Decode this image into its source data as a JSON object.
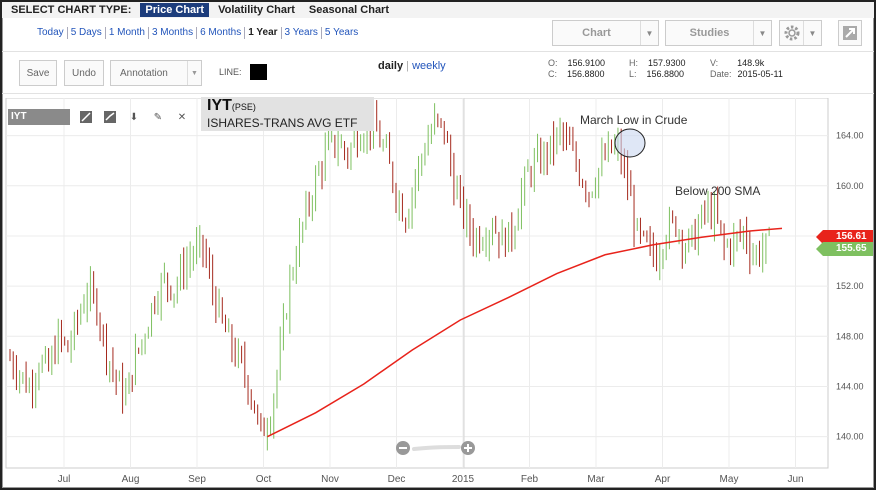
{
  "chart_type_bar": {
    "label": "SELECT CHART TYPE:",
    "options": [
      "Price Chart",
      "Volatility Chart",
      "Seasonal Chart"
    ],
    "selected": "Price Chart"
  },
  "ranges": [
    "Today",
    "5 Days",
    "1 Month",
    "3 Months",
    "6 Months",
    "1 Year",
    "3 Years",
    "5 Years"
  ],
  "selected_range": "1 Year",
  "toolbar": {
    "chart_btn": "Chart",
    "studies_btn": "Studies",
    "save_btn": "Save",
    "undo_btn": "Undo",
    "annotation_select": "Annotation",
    "line_label": "LINE:",
    "line_color": "#000000",
    "period_daily": "daily",
    "period_sep": "|",
    "period_weekly": "weekly",
    "gear_icon": "gear-icon",
    "popout_icon": "popout-icon"
  },
  "quote": {
    "open_label": "O:",
    "open": "156.9100",
    "close_label": "C:",
    "close": "156.8800",
    "high_label": "H:",
    "high": "157.9300",
    "low_label": "L:",
    "low": "156.8800",
    "vol_label": "V:",
    "vol": "148.9k",
    "date_label": "Date:",
    "date": "2015-05-11"
  },
  "symbol_box": "IYT",
  "ticker": {
    "symbol": "IYT",
    "exchange": "(PSE)",
    "name": "ISHARES-TRANS AVG ETF"
  },
  "annotations": {
    "march_low": "March Low in Crude",
    "below_sma": "Below 200 SMA"
  },
  "price_tags": {
    "sma_value": "156.61",
    "sma_color": "#e8231b",
    "last_value": "155.65",
    "last_color": "#7ec060"
  },
  "colors": {
    "up": "#7ec060",
    "down": "#a52a1e",
    "sma": "#e8231b",
    "accent": "#1d3d7c"
  },
  "chart_data": {
    "type": "ohlc",
    "x_tick_labels": [
      "Jul",
      "Aug",
      "Sep",
      "Oct",
      "Nov",
      "Dec",
      "2015",
      "Feb",
      "Mar",
      "Apr",
      "May",
      "Jun"
    ],
    "y_tick_labels": [
      "140.00",
      "144.00",
      "148.00",
      "152.00",
      "156.00",
      "160.00",
      "164.00"
    ],
    "y_ticks": [
      140,
      144,
      148,
      152,
      156,
      160,
      164
    ],
    "ylim": [
      137.5,
      167
    ],
    "grid": true,
    "series": [
      {
        "name": "IYT",
        "type": "ohlc-bars",
        "points": [
          [
            0,
            146.2
          ],
          [
            6,
            145.1
          ],
          [
            12,
            143.9
          ],
          [
            18,
            146.0
          ],
          [
            24,
            145.3
          ],
          [
            30,
            147.9
          ],
          [
            36,
            146.9
          ],
          [
            42,
            149.3
          ],
          [
            48,
            151.7
          ],
          [
            54,
            150.4
          ],
          [
            60,
            146.8
          ],
          [
            66,
            144.5
          ],
          [
            72,
            143.1
          ],
          [
            78,
            146.3
          ],
          [
            84,
            148.4
          ],
          [
            90,
            151.2
          ],
          [
            96,
            152.5
          ],
          [
            102,
            151.8
          ],
          [
            108,
            153.5
          ],
          [
            114,
            154.7
          ],
          [
            120,
            155.0
          ],
          [
            126,
            151.6
          ],
          [
            132,
            148.9
          ],
          [
            138,
            147.1
          ],
          [
            144,
            145.6
          ],
          [
            150,
            143.4
          ],
          [
            156,
            140.1
          ],
          [
            162,
            141.9
          ],
          [
            168,
            146.6
          ],
          [
            174,
            152.4
          ],
          [
            180,
            155.8
          ],
          [
            186,
            158.7
          ],
          [
            192,
            161.2
          ],
          [
            198,
            163.0
          ],
          [
            204,
            163.4
          ],
          [
            210,
            162.5
          ],
          [
            216,
            164.0
          ],
          [
            222,
            165.0
          ],
          [
            228,
            164.2
          ],
          [
            234,
            162.3
          ],
          [
            240,
            159.5
          ],
          [
            246,
            157.5
          ],
          [
            252,
            160.7
          ],
          [
            258,
            163.1
          ],
          [
            264,
            165.0
          ],
          [
            270,
            164.4
          ],
          [
            276,
            160.1
          ],
          [
            282,
            157.7
          ],
          [
            288,
            155.9
          ],
          [
            294,
            156.1
          ],
          [
            300,
            157.0
          ],
          [
            306,
            155.6
          ],
          [
            312,
            156.2
          ],
          [
            318,
            159.5
          ],
          [
            324,
            161.4
          ],
          [
            330,
            162.1
          ],
          [
            336,
            163.0
          ],
          [
            342,
            164.2
          ],
          [
            348,
            162.9
          ],
          [
            354,
            161.1
          ],
          [
            360,
            159.6
          ],
          [
            366,
            161.3
          ],
          [
            372,
            162.7
          ],
          [
            378,
            163.0
          ],
          [
            384,
            160.1
          ],
          [
            390,
            156.0
          ],
          [
            396,
            155.0
          ],
          [
            402,
            154.3
          ],
          [
            408,
            156.5
          ],
          [
            414,
            157.0
          ],
          [
            420,
            155.2
          ],
          [
            426,
            156.0
          ],
          [
            432,
            158.0
          ],
          [
            438,
            157.7
          ],
          [
            444,
            155.1
          ],
          [
            450,
            155.5
          ],
          [
            456,
            156.4
          ],
          [
            462,
            154.5
          ],
          [
            468,
            155.0
          ],
          [
            474,
            155.65
          ]
        ]
      },
      {
        "name": "200 SMA",
        "type": "line",
        "points": [
          [
            160,
            140.0
          ],
          [
            190,
            141.9
          ],
          [
            220,
            144.2
          ],
          [
            250,
            146.9
          ],
          [
            280,
            149.3
          ],
          [
            310,
            151.1
          ],
          [
            340,
            153.0
          ],
          [
            370,
            154.5
          ],
          [
            400,
            155.3
          ],
          [
            430,
            155.9
          ],
          [
            460,
            156.4
          ],
          [
            480,
            156.61
          ]
        ]
      }
    ]
  }
}
